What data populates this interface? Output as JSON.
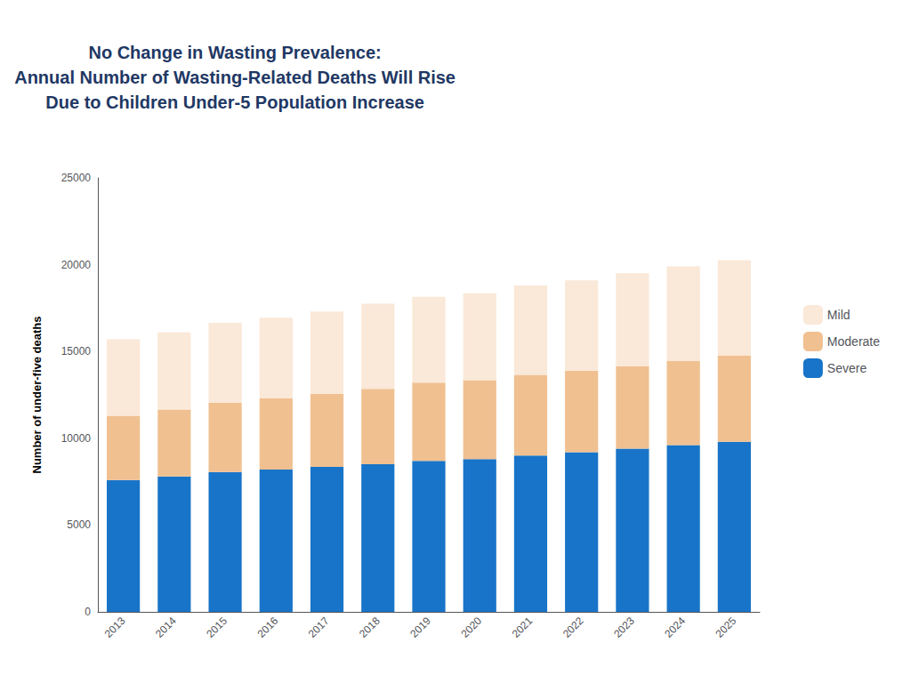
{
  "chart_data": {
    "type": "bar",
    "title": "No Change in Wasting Prevalence:\nAnnual Number of Wasting-Related Deaths Will Rise\nDue to Children Under-5 Population Increase",
    "categories": [
      "2013",
      "2014",
      "2015",
      "2016",
      "2017",
      "2018",
      "2019",
      "2020",
      "2021",
      "2022",
      "2023",
      "2024",
      "2025"
    ],
    "series": [
      {
        "name": "Severe",
        "color": "#1874C8",
        "values": [
          7600,
          7800,
          8050,
          8200,
          8350,
          8500,
          8700,
          8800,
          9000,
          9200,
          9400,
          9600,
          9800
        ]
      },
      {
        "name": "Moderate",
        "color": "#F0C090",
        "values": [
          3700,
          3850,
          4000,
          4100,
          4200,
          4350,
          4500,
          4550,
          4650,
          4700,
          4750,
          4850,
          4950
        ]
      },
      {
        "name": "Mild",
        "color": "#FAE8D8",
        "values": [
          4400,
          4450,
          4600,
          4650,
          4750,
          4900,
          4950,
          5000,
          5150,
          5200,
          5350,
          5450,
          5500
        ]
      }
    ],
    "stacked": true,
    "ylabel": "Number of under-five deaths",
    "ylim": [
      0,
      25000
    ],
    "yticks": [
      0,
      5000,
      10000,
      15000,
      20000,
      25000
    ],
    "grid": false,
    "legend": "right"
  }
}
